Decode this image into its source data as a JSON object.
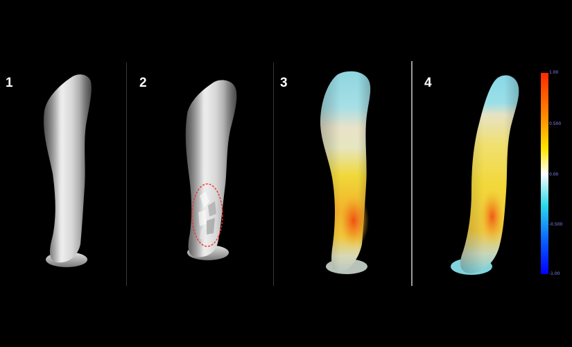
{
  "panels": [
    {
      "label": "1",
      "style": "gray"
    },
    {
      "label": "2",
      "style": "gray-highlight"
    },
    {
      "label": "3",
      "style": "heatmap"
    },
    {
      "label": "4",
      "style": "heatmap"
    }
  ],
  "colorbar": {
    "ticks": [
      "1.00",
      "0.500",
      "0.00",
      "-0.500",
      "-1.00"
    ],
    "tick_color": "#8a8aff",
    "gradient": [
      "#ff2a00",
      "#ff8c00",
      "#ffe600",
      "#ffffff",
      "#2ad8e8",
      "#0a5cff",
      "#0000ff"
    ]
  },
  "colors": {
    "background": "#000000",
    "highlight": "#ff2a2a"
  }
}
